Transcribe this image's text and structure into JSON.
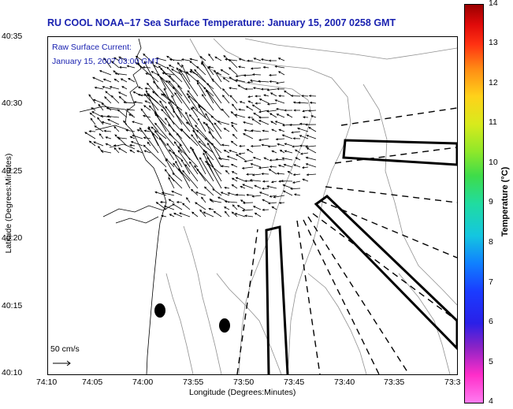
{
  "title": "RU COOL  NOAA–17  Sea Surface Temperature:  January 15, 2007 0258 GMT",
  "current": {
    "label": "Raw Surface Current:",
    "time": "January 15, 2007 03:00 GMT",
    "scale": "50 cm/s"
  },
  "axes": {
    "xlabel": "Longitude (Degrees:Minutes)",
    "ylabel": "Latitude (Degrees:Minutes)",
    "xticks": [
      "74:10",
      "74:05",
      "74:00",
      "73:55",
      "73:50",
      "73:45",
      "73:40",
      "73:35",
      "73:3"
    ],
    "yticks": [
      "40:35",
      "40:30",
      "40:25",
      "40:20",
      "40:15",
      "40:10"
    ]
  },
  "colorbar": {
    "label": "Temperature (°C)",
    "ticks": [
      "14",
      "13",
      "12",
      "11",
      "10",
      "9",
      "8",
      "7",
      "6",
      "5",
      "4"
    ]
  },
  "colors": {
    "title": "#1a22b0",
    "vectors": "#000000",
    "contours": "#909090"
  }
}
